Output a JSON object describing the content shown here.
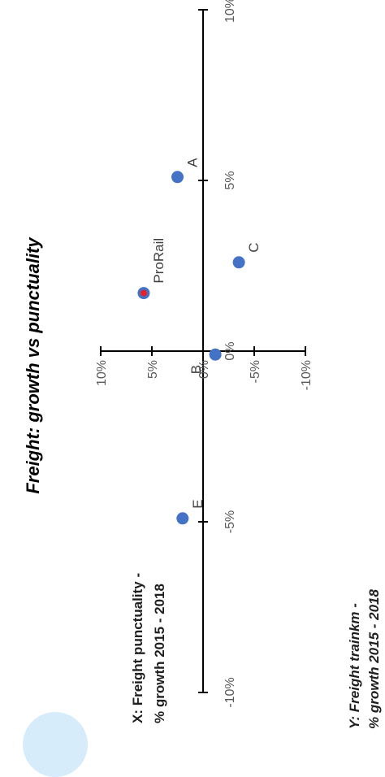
{
  "chart_data": {
    "type": "scatter",
    "title": "Freight: growth vs punctuality",
    "xlabel_lines": [
      "X: Freight punctuality -",
      "% growth 2015 - 2018"
    ],
    "ylabel_lines": [
      "Y: Freight trainkm -",
      "% growth 2015 - 2018"
    ],
    "xlim": [
      -0.1,
      0.1
    ],
    "ylim": [
      -0.1,
      0.1
    ],
    "x_ticks": [
      {
        "value": -0.1,
        "label": "-10%"
      },
      {
        "value": -0.05,
        "label": "-5%"
      },
      {
        "value": 0.0,
        "label": "0%"
      },
      {
        "value": 0.05,
        "label": "5%"
      },
      {
        "value": 0.1,
        "label": "10%"
      }
    ],
    "y_ticks": [
      {
        "value": -0.1,
        "label": "-10%"
      },
      {
        "value": -0.05,
        "label": "-5%"
      },
      {
        "value": 0.0,
        "label": "0%"
      },
      {
        "value": 0.05,
        "label": "5%"
      },
      {
        "value": 0.1,
        "label": "10%"
      }
    ],
    "points": [
      {
        "label": "A",
        "x": 0.051,
        "y": 0.025,
        "color": "#4472c4",
        "label_side": "right"
      },
      {
        "label": "ProRail",
        "x": 0.017,
        "y": 0.058,
        "color": "#4472c4",
        "inner_color": "#e8202a",
        "label_side": "right"
      },
      {
        "label": "C",
        "x": 0.026,
        "y": -0.035,
        "color": "#4472c4",
        "label_side": "right"
      },
      {
        "label": "B",
        "x": -0.001,
        "y": -0.012,
        "color": "#4472c4",
        "label_side": "left"
      },
      {
        "label": "E",
        "x": -0.049,
        "y": 0.02,
        "color": "#4472c4",
        "label_side": "right"
      }
    ],
    "grid": false,
    "legend": "none",
    "orientation": "rotated-90-counterclockwise"
  }
}
